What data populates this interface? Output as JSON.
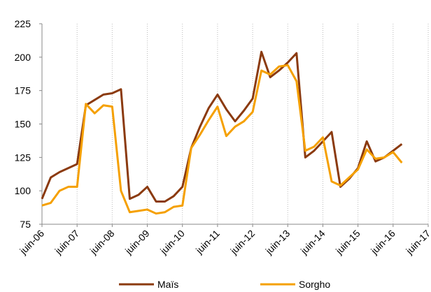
{
  "chart_data": {
    "type": "line",
    "x": [
      2006.5,
      2006.75,
      2007,
      2007.25,
      2007.5,
      2007.75,
      2008,
      2008.25,
      2008.5,
      2008.75,
      2009,
      2009.25,
      2009.5,
      2009.75,
      2010,
      2010.25,
      2010.5,
      2010.75,
      2011,
      2011.25,
      2011.5,
      2011.75,
      2012,
      2012.25,
      2012.5,
      2012.75,
      2013,
      2013.25,
      2013.5,
      2013.75,
      2014,
      2014.25,
      2014.5,
      2014.75,
      2015,
      2015.25,
      2015.5,
      2015.75,
      2016,
      2016.25,
      2016.5,
      2016.75
    ],
    "series": [
      {
        "name": "Maïs",
        "color": "#8b3a0f",
        "values": [
          94,
          110,
          114,
          117,
          120,
          164,
          168,
          172,
          173,
          176,
          94,
          97,
          103,
          92,
          92,
          96,
          103,
          132,
          148,
          162,
          172,
          161,
          152,
          160,
          169,
          204,
          185,
          190,
          196,
          203,
          125,
          130,
          137,
          144,
          103,
          109,
          117,
          137,
          122,
          125,
          130,
          135
        ]
      },
      {
        "name": "Sorgho",
        "color": "#f5a000",
        "values": [
          89,
          91,
          100,
          103,
          103,
          165,
          158,
          164,
          163,
          100,
          84,
          85,
          86,
          83,
          84,
          88,
          89,
          132,
          142,
          153,
          163,
          141,
          148,
          152,
          159,
          190,
          187,
          193,
          194,
          182,
          130,
          133,
          140,
          107,
          104,
          110,
          116,
          131,
          124,
          125,
          129,
          121
        ]
      }
    ],
    "xlim": [
      2006.5,
      2017.5
    ],
    "xticks": [
      {
        "value": 2006.5,
        "label": "juin-06"
      },
      {
        "value": 2007.5,
        "label": "juin-07"
      },
      {
        "value": 2008.5,
        "label": "juin-08"
      },
      {
        "value": 2009.5,
        "label": "juin-09"
      },
      {
        "value": 2010.5,
        "label": "juin-10"
      },
      {
        "value": 2011.5,
        "label": "juin-11"
      },
      {
        "value": 2012.5,
        "label": "juin-12"
      },
      {
        "value": 2013.5,
        "label": "juin-13"
      },
      {
        "value": 2014.5,
        "label": "juin-14"
      },
      {
        "value": 2015.5,
        "label": "juin-15"
      },
      {
        "value": 2016.5,
        "label": "juin-16"
      },
      {
        "value": 2017.5,
        "label": "juin-17"
      }
    ],
    "ylim": [
      75,
      225
    ],
    "yticks": [
      75,
      100,
      125,
      150,
      175,
      200,
      225
    ],
    "grid": true,
    "legend": "bottom"
  }
}
